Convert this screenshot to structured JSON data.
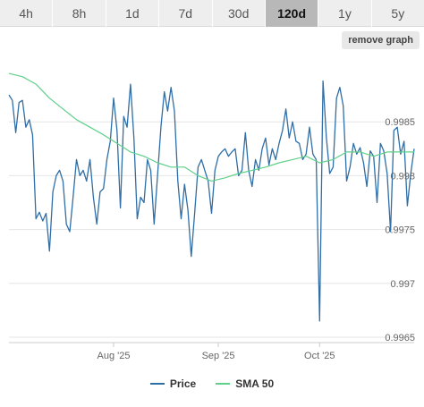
{
  "range_tabs": [
    {
      "label": "4h",
      "active": false
    },
    {
      "label": "8h",
      "active": false
    },
    {
      "label": "1d",
      "active": false
    },
    {
      "label": "7d",
      "active": false
    },
    {
      "label": "30d",
      "active": false
    },
    {
      "label": "120d",
      "active": true
    },
    {
      "label": "1y",
      "active": false
    },
    {
      "label": "5y",
      "active": false
    }
  ],
  "remove_graph_label": "remove graph",
  "colors": {
    "price": "#2f6ea6",
    "sma": "#5fd08a",
    "grid": "#e6e6e6",
    "axis_text": "#666666"
  },
  "chart_data": {
    "type": "line",
    "title": "",
    "xlabel": "",
    "ylabel": "",
    "ylim": [
      0.99645,
      0.9991
    ],
    "yticks": [
      0.9965,
      0.997,
      0.9975,
      0.998,
      0.9985
    ],
    "ytick_labels": [
      "0.9965",
      "0.997",
      "0.9975",
      "0.998",
      "0.9985"
    ],
    "xlim": [
      0,
      120
    ],
    "xticks": [
      {
        "x": 31,
        "label": "Aug '25"
      },
      {
        "x": 62,
        "label": "Sep '25"
      },
      {
        "x": 92,
        "label": "Oct '25"
      }
    ],
    "legend": "bottom-center",
    "grid": true,
    "series": [
      {
        "name": "Price",
        "x": [
          0,
          1,
          2,
          3,
          4,
          5,
          6,
          7,
          8,
          9,
          10,
          11,
          12,
          13,
          14,
          15,
          16,
          17,
          18,
          19,
          20,
          21,
          22,
          23,
          24,
          25,
          26,
          27,
          28,
          29,
          30,
          31,
          32,
          33,
          34,
          35,
          36,
          37,
          38,
          39,
          40,
          41,
          42,
          43,
          44,
          45,
          46,
          47,
          48,
          49,
          50,
          51,
          52,
          53,
          54,
          55,
          56,
          57,
          58,
          59,
          60,
          61,
          62,
          63,
          64,
          65,
          66,
          67,
          68,
          69,
          70,
          71,
          72,
          73,
          74,
          75,
          76,
          77,
          78,
          79,
          80,
          81,
          82,
          83,
          84,
          85,
          86,
          87,
          88,
          89,
          90,
          91,
          92,
          93,
          94,
          95,
          96,
          97,
          98,
          99,
          100,
          101,
          102,
          103,
          104,
          105,
          106,
          107,
          108,
          109,
          110,
          111,
          112,
          113,
          114,
          115,
          116,
          117,
          118,
          119,
          120
        ],
        "values": [
          0.99875,
          0.9987,
          0.9984,
          0.99868,
          0.9987,
          0.99845,
          0.99852,
          0.99838,
          0.9976,
          0.99766,
          0.99758,
          0.99765,
          0.9973,
          0.99785,
          0.998,
          0.99805,
          0.99795,
          0.99755,
          0.99748,
          0.9978,
          0.99815,
          0.998,
          0.99805,
          0.99795,
          0.99815,
          0.9978,
          0.99755,
          0.99785,
          0.99788,
          0.99815,
          0.99832,
          0.99872,
          0.99842,
          0.9977,
          0.99855,
          0.99845,
          0.99885,
          0.99835,
          0.9976,
          0.9978,
          0.99775,
          0.99815,
          0.99805,
          0.99755,
          0.998,
          0.99845,
          0.99878,
          0.9986,
          0.99882,
          0.9986,
          0.99795,
          0.9976,
          0.99792,
          0.99768,
          0.99725,
          0.99765,
          0.99808,
          0.99815,
          0.99805,
          0.99795,
          0.99765,
          0.99805,
          0.99818,
          0.99822,
          0.99825,
          0.99818,
          0.99822,
          0.99825,
          0.998,
          0.99805,
          0.9984,
          0.99805,
          0.9979,
          0.99815,
          0.99805,
          0.99825,
          0.99835,
          0.9981,
          0.99825,
          0.99815,
          0.9983,
          0.99842,
          0.99862,
          0.99835,
          0.9985,
          0.99832,
          0.9983,
          0.99815,
          0.9982,
          0.99845,
          0.9982,
          0.99815,
          0.99665,
          0.99888,
          0.99835,
          0.99802,
          0.99808,
          0.99872,
          0.99882,
          0.99865,
          0.99795,
          0.99808,
          0.9983,
          0.9982,
          0.99826,
          0.99812,
          0.9979,
          0.99823,
          0.99818,
          0.99775,
          0.9983,
          0.99823,
          0.99802,
          0.99748,
          0.99842,
          0.99845,
          0.9982,
          0.99832,
          0.99772,
          0.99802,
          0.99825
        ]
      },
      {
        "name": "SMA 50",
        "x": [
          0,
          4,
          8,
          12,
          16,
          20,
          24,
          28,
          32,
          36,
          40,
          44,
          48,
          52,
          56,
          60,
          64,
          68,
          72,
          76,
          80,
          84,
          88,
          92,
          96,
          100,
          104,
          108,
          112,
          116,
          120
        ],
        "values": [
          0.99895,
          0.99892,
          0.99885,
          0.99872,
          0.99862,
          0.99852,
          0.99845,
          0.99838,
          0.9983,
          0.99822,
          0.99818,
          0.99812,
          0.99808,
          0.99808,
          0.998,
          0.99795,
          0.99798,
          0.99802,
          0.99805,
          0.99808,
          0.99812,
          0.99815,
          0.99818,
          0.99812,
          0.99815,
          0.99822,
          0.99822,
          0.99818,
          0.99822,
          0.99822,
          0.99822
        ]
      }
    ]
  }
}
